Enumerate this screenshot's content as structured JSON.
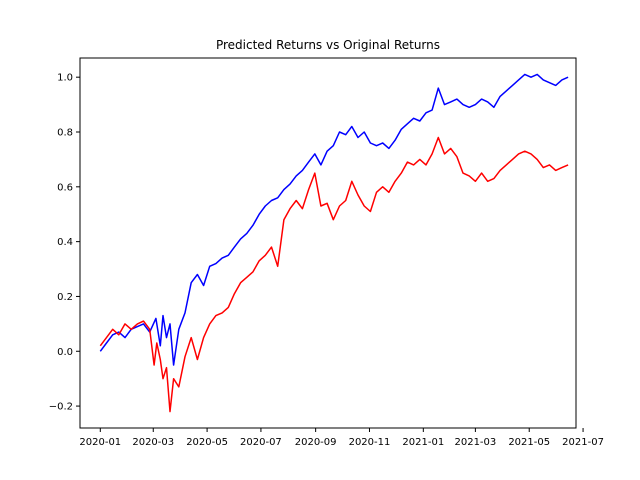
{
  "chart_data": {
    "type": "line",
    "title": "Predicted Returns vs Original Returns",
    "xlabel": "",
    "ylabel": "",
    "x_axis": {
      "type": "date",
      "range": [
        "2019-12-09",
        "2021-06-23"
      ],
      "ticks": [
        "2020-01-01",
        "2020-03-01",
        "2020-05-01",
        "2020-07-01",
        "2020-09-01",
        "2020-11-01",
        "2021-01-01",
        "2021-03-01",
        "2021-05-01",
        "2021-07-01"
      ],
      "tick_labels": [
        "2020-01",
        "2020-03",
        "2020-05",
        "2020-07",
        "2020-09",
        "2020-11",
        "2021-01",
        "2021-03",
        "2021-05",
        "2021-07"
      ]
    },
    "y_axis": {
      "range": [
        -0.28,
        1.07
      ],
      "ticks": [
        -0.2,
        0.0,
        0.2,
        0.4,
        0.6,
        0.8,
        1.0
      ],
      "tick_labels": [
        "−0.2",
        "0.0",
        "0.2",
        "0.4",
        "0.6",
        "0.8",
        "1.0"
      ]
    },
    "grid": false,
    "legend": "none",
    "series": [
      {
        "color": "#0000ff",
        "points": [
          [
            "2020-01-01",
            0.0
          ],
          [
            "2020-01-08",
            0.03
          ],
          [
            "2020-01-15",
            0.06
          ],
          [
            "2020-01-22",
            0.07
          ],
          [
            "2020-01-29",
            0.05
          ],
          [
            "2020-02-05",
            0.08
          ],
          [
            "2020-02-12",
            0.09
          ],
          [
            "2020-02-19",
            0.1
          ],
          [
            "2020-02-26",
            0.07
          ],
          [
            "2020-03-04",
            0.12
          ],
          [
            "2020-03-09",
            0.02
          ],
          [
            "2020-03-12",
            0.13
          ],
          [
            "2020-03-16",
            0.05
          ],
          [
            "2020-03-20",
            0.1
          ],
          [
            "2020-03-24",
            -0.05
          ],
          [
            "2020-03-30",
            0.08
          ],
          [
            "2020-04-06",
            0.14
          ],
          [
            "2020-04-13",
            0.25
          ],
          [
            "2020-04-20",
            0.28
          ],
          [
            "2020-04-27",
            0.24
          ],
          [
            "2020-05-04",
            0.31
          ],
          [
            "2020-05-11",
            0.32
          ],
          [
            "2020-05-18",
            0.34
          ],
          [
            "2020-05-25",
            0.35
          ],
          [
            "2020-06-01",
            0.38
          ],
          [
            "2020-06-08",
            0.41
          ],
          [
            "2020-06-15",
            0.43
          ],
          [
            "2020-06-22",
            0.46
          ],
          [
            "2020-06-29",
            0.5
          ],
          [
            "2020-07-06",
            0.53
          ],
          [
            "2020-07-13",
            0.55
          ],
          [
            "2020-07-20",
            0.56
          ],
          [
            "2020-07-27",
            0.59
          ],
          [
            "2020-08-03",
            0.61
          ],
          [
            "2020-08-10",
            0.64
          ],
          [
            "2020-08-17",
            0.66
          ],
          [
            "2020-08-24",
            0.69
          ],
          [
            "2020-08-31",
            0.72
          ],
          [
            "2020-09-07",
            0.68
          ],
          [
            "2020-09-14",
            0.73
          ],
          [
            "2020-09-21",
            0.75
          ],
          [
            "2020-09-28",
            0.8
          ],
          [
            "2020-10-05",
            0.79
          ],
          [
            "2020-10-12",
            0.82
          ],
          [
            "2020-10-19",
            0.78
          ],
          [
            "2020-10-26",
            0.8
          ],
          [
            "2020-11-02",
            0.76
          ],
          [
            "2020-11-09",
            0.75
          ],
          [
            "2020-11-16",
            0.76
          ],
          [
            "2020-11-23",
            0.74
          ],
          [
            "2020-11-30",
            0.77
          ],
          [
            "2020-12-07",
            0.81
          ],
          [
            "2020-12-14",
            0.83
          ],
          [
            "2020-12-21",
            0.85
          ],
          [
            "2020-12-28",
            0.84
          ],
          [
            "2021-01-04",
            0.87
          ],
          [
            "2021-01-11",
            0.88
          ],
          [
            "2021-01-18",
            0.96
          ],
          [
            "2021-01-25",
            0.9
          ],
          [
            "2021-02-01",
            0.91
          ],
          [
            "2021-02-08",
            0.92
          ],
          [
            "2021-02-15",
            0.9
          ],
          [
            "2021-02-22",
            0.89
          ],
          [
            "2021-03-01",
            0.9
          ],
          [
            "2021-03-08",
            0.92
          ],
          [
            "2021-03-15",
            0.91
          ],
          [
            "2021-03-22",
            0.89
          ],
          [
            "2021-03-29",
            0.93
          ],
          [
            "2021-04-05",
            0.95
          ],
          [
            "2021-04-12",
            0.97
          ],
          [
            "2021-04-19",
            0.99
          ],
          [
            "2021-04-26",
            1.01
          ],
          [
            "2021-05-03",
            1.0
          ],
          [
            "2021-05-10",
            1.01
          ],
          [
            "2021-05-17",
            0.99
          ],
          [
            "2021-05-24",
            0.98
          ],
          [
            "2021-05-31",
            0.97
          ],
          [
            "2021-06-07",
            0.99
          ],
          [
            "2021-06-14",
            1.0
          ]
        ]
      },
      {
        "color": "#ff0000",
        "points": [
          [
            "2020-01-01",
            0.02
          ],
          [
            "2020-01-08",
            0.05
          ],
          [
            "2020-01-15",
            0.08
          ],
          [
            "2020-01-22",
            0.06
          ],
          [
            "2020-01-29",
            0.1
          ],
          [
            "2020-02-05",
            0.08
          ],
          [
            "2020-02-12",
            0.1
          ],
          [
            "2020-02-19",
            0.11
          ],
          [
            "2020-02-26",
            0.08
          ],
          [
            "2020-03-02",
            -0.05
          ],
          [
            "2020-03-05",
            0.03
          ],
          [
            "2020-03-09",
            -0.03
          ],
          [
            "2020-03-12",
            -0.1
          ],
          [
            "2020-03-16",
            -0.06
          ],
          [
            "2020-03-20",
            -0.22
          ],
          [
            "2020-03-24",
            -0.1
          ],
          [
            "2020-03-30",
            -0.13
          ],
          [
            "2020-04-06",
            -0.02
          ],
          [
            "2020-04-13",
            0.05
          ],
          [
            "2020-04-20",
            -0.03
          ],
          [
            "2020-04-27",
            0.05
          ],
          [
            "2020-05-04",
            0.1
          ],
          [
            "2020-05-11",
            0.13
          ],
          [
            "2020-05-18",
            0.14
          ],
          [
            "2020-05-25",
            0.16
          ],
          [
            "2020-06-01",
            0.21
          ],
          [
            "2020-06-08",
            0.25
          ],
          [
            "2020-06-15",
            0.27
          ],
          [
            "2020-06-22",
            0.29
          ],
          [
            "2020-06-29",
            0.33
          ],
          [
            "2020-07-06",
            0.35
          ],
          [
            "2020-07-13",
            0.38
          ],
          [
            "2020-07-20",
            0.31
          ],
          [
            "2020-07-27",
            0.48
          ],
          [
            "2020-08-03",
            0.52
          ],
          [
            "2020-08-10",
            0.55
          ],
          [
            "2020-08-17",
            0.52
          ],
          [
            "2020-08-24",
            0.59
          ],
          [
            "2020-08-31",
            0.65
          ],
          [
            "2020-09-07",
            0.53
          ],
          [
            "2020-09-14",
            0.54
          ],
          [
            "2020-09-21",
            0.48
          ],
          [
            "2020-09-28",
            0.53
          ],
          [
            "2020-10-05",
            0.55
          ],
          [
            "2020-10-12",
            0.62
          ],
          [
            "2020-10-19",
            0.57
          ],
          [
            "2020-10-26",
            0.53
          ],
          [
            "2020-11-02",
            0.51
          ],
          [
            "2020-11-09",
            0.58
          ],
          [
            "2020-11-16",
            0.6
          ],
          [
            "2020-11-23",
            0.58
          ],
          [
            "2020-11-30",
            0.62
          ],
          [
            "2020-12-07",
            0.65
          ],
          [
            "2020-12-14",
            0.69
          ],
          [
            "2020-12-21",
            0.68
          ],
          [
            "2020-12-28",
            0.7
          ],
          [
            "2021-01-04",
            0.68
          ],
          [
            "2021-01-11",
            0.72
          ],
          [
            "2021-01-18",
            0.78
          ],
          [
            "2021-01-25",
            0.72
          ],
          [
            "2021-02-01",
            0.74
          ],
          [
            "2021-02-08",
            0.71
          ],
          [
            "2021-02-15",
            0.65
          ],
          [
            "2021-02-22",
            0.64
          ],
          [
            "2021-03-01",
            0.62
          ],
          [
            "2021-03-08",
            0.65
          ],
          [
            "2021-03-15",
            0.62
          ],
          [
            "2021-03-22",
            0.63
          ],
          [
            "2021-03-29",
            0.66
          ],
          [
            "2021-04-05",
            0.68
          ],
          [
            "2021-04-12",
            0.7
          ],
          [
            "2021-04-19",
            0.72
          ],
          [
            "2021-04-26",
            0.73
          ],
          [
            "2021-05-03",
            0.72
          ],
          [
            "2021-05-10",
            0.7
          ],
          [
            "2021-05-17",
            0.67
          ],
          [
            "2021-05-24",
            0.68
          ],
          [
            "2021-05-31",
            0.66
          ],
          [
            "2021-06-07",
            0.67
          ],
          [
            "2021-06-14",
            0.68
          ]
        ]
      }
    ]
  }
}
